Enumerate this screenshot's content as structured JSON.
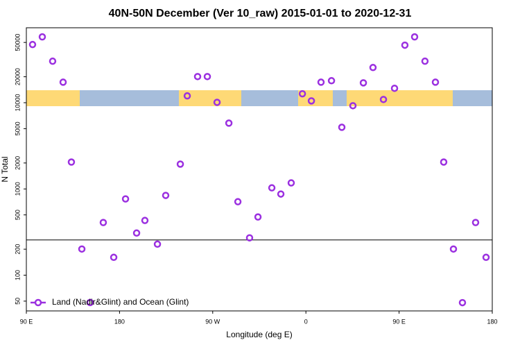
{
  "chart_data": {
    "type": "scatter",
    "title": "40N-50N December (Ver 10_raw)   2015-01-01 to 2020-12-31",
    "x_label": "Longitude (deg E)",
    "y_label": "N Total",
    "log_y": true,
    "legend": "bottom-left",
    "xlim": [
      -270,
      180
    ],
    "xticks": [
      {
        "value": -270,
        "label": "90 E"
      },
      {
        "value": -180,
        "label": "180"
      },
      {
        "value": -90,
        "label": "90 W"
      },
      0,
      {
        "value": 90,
        "label": "90 E"
      },
      {
        "value": 180,
        "label": "180"
      }
    ],
    "ylim": [
      38.5,
      74000
    ],
    "yticks": [
      50,
      100,
      200,
      500,
      1000,
      2000,
      5000,
      10000,
      20000,
      50000
    ],
    "reference_line": 256,
    "x": [
      -264,
      -254.6,
      -244.6,
      -234.5,
      -226.5,
      -216.4,
      -208.4,
      -195.7,
      -185.6,
      -174.2,
      -163.5,
      -155.5,
      -143.4,
      -135.4,
      -121.3,
      -114.6,
      -104.6,
      -95.2,
      -85.8,
      -74.4,
      -65.7,
      -54.4,
      -46.3,
      -32.9,
      -24.2,
      -14.2,
      -3.4,
      5.3,
      14.6,
      24.7,
      34.7,
      45.4,
      55.5,
      64.8,
      74.9,
      85.6,
      95.6,
      105,
      115,
      125.1,
      133.1,
      142.5,
      151.2,
      163.9,
      174
    ],
    "series": [
      {
        "name": "Land (Nadir&Glint) and Ocean (Glint)",
        "color": "#9b30e0",
        "values": [
          47300,
          58000,
          30300,
          17300,
          2050,
          201,
          48.2,
          408,
          161,
          766,
          308,
          431,
          229,
          841,
          1940,
          12000,
          20100,
          20100,
          10100,
          5800,
          711,
          271,
          473,
          1030,
          873,
          1175,
          12700,
          10500,
          17300,
          18000,
          5190,
          9230,
          17000,
          25600,
          10900,
          14700,
          46500,
          58000,
          30300,
          17300,
          2050,
          201,
          48,
          408,
          161
        ]
      }
    ]
  }
}
